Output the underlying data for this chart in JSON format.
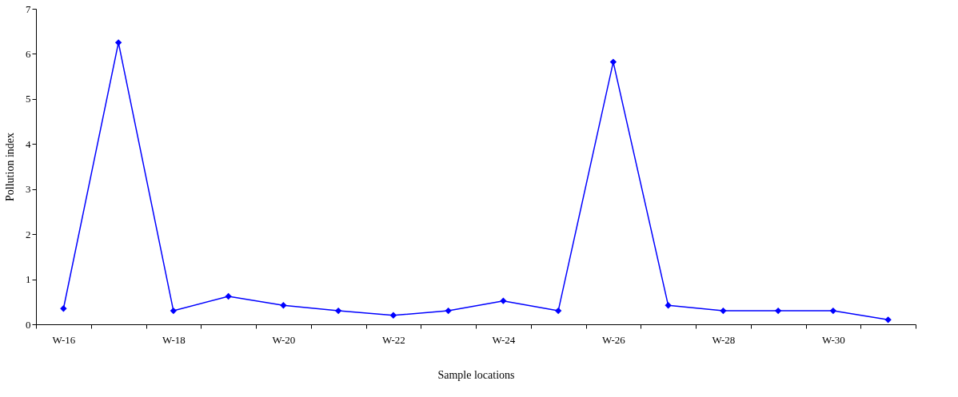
{
  "chart_data": {
    "type": "line",
    "xlabel": "Sample locations",
    "ylabel": "Pollution index",
    "categories": [
      "W-16",
      null,
      "W-18",
      null,
      "W-20",
      null,
      "W-22",
      null,
      "W-24",
      null,
      "W-26",
      null,
      "W-28",
      null,
      "W-30",
      null
    ],
    "series": [
      {
        "color": "#0000ff",
        "values": [
          0.35,
          6.25,
          0.3,
          0.62,
          0.42,
          0.3,
          0.2,
          0.3,
          0.52,
          0.3,
          5.82,
          0.42,
          0.3,
          0.3,
          0.3,
          0.1
        ]
      }
    ],
    "ylim": [
      0,
      7
    ],
    "yticks": [
      0,
      1,
      2,
      3,
      4,
      5,
      6,
      7
    ],
    "grid": false,
    "marker": "diamond",
    "line_style": "solid"
  }
}
